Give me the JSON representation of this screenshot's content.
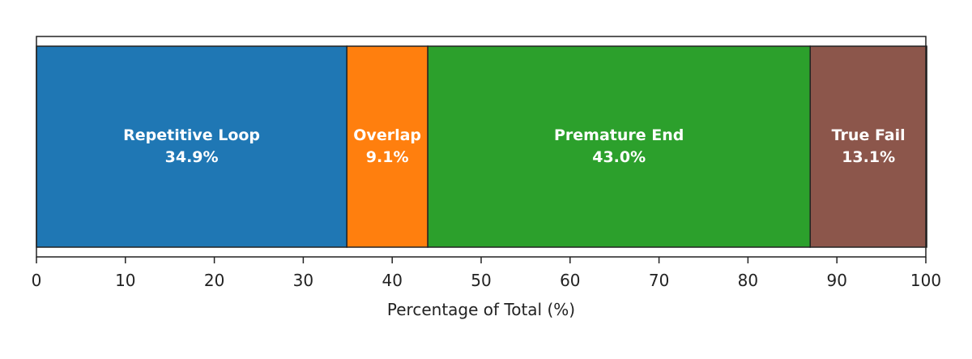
{
  "chart_data": {
    "type": "bar",
    "orientation": "horizontal-stacked",
    "title": "",
    "xlabel": "Percentage of Total (%)",
    "ylabel": "",
    "xlim": [
      0,
      100
    ],
    "xticks": [
      0,
      10,
      20,
      30,
      40,
      50,
      60,
      70,
      80,
      90,
      100
    ],
    "grid": false,
    "series": [
      {
        "name": "Repetitive Loop",
        "value": 34.9,
        "label": "34.9%",
        "color": "#1f77b4"
      },
      {
        "name": "Overlap",
        "value": 9.1,
        "label": "9.1%",
        "color": "#ff7f0e"
      },
      {
        "name": "Premature End",
        "value": 43.0,
        "label": "43.0%",
        "color": "#2ca02c"
      },
      {
        "name": "True Fail",
        "value": 13.1,
        "label": "13.1%",
        "color": "#8c564b"
      }
    ]
  }
}
